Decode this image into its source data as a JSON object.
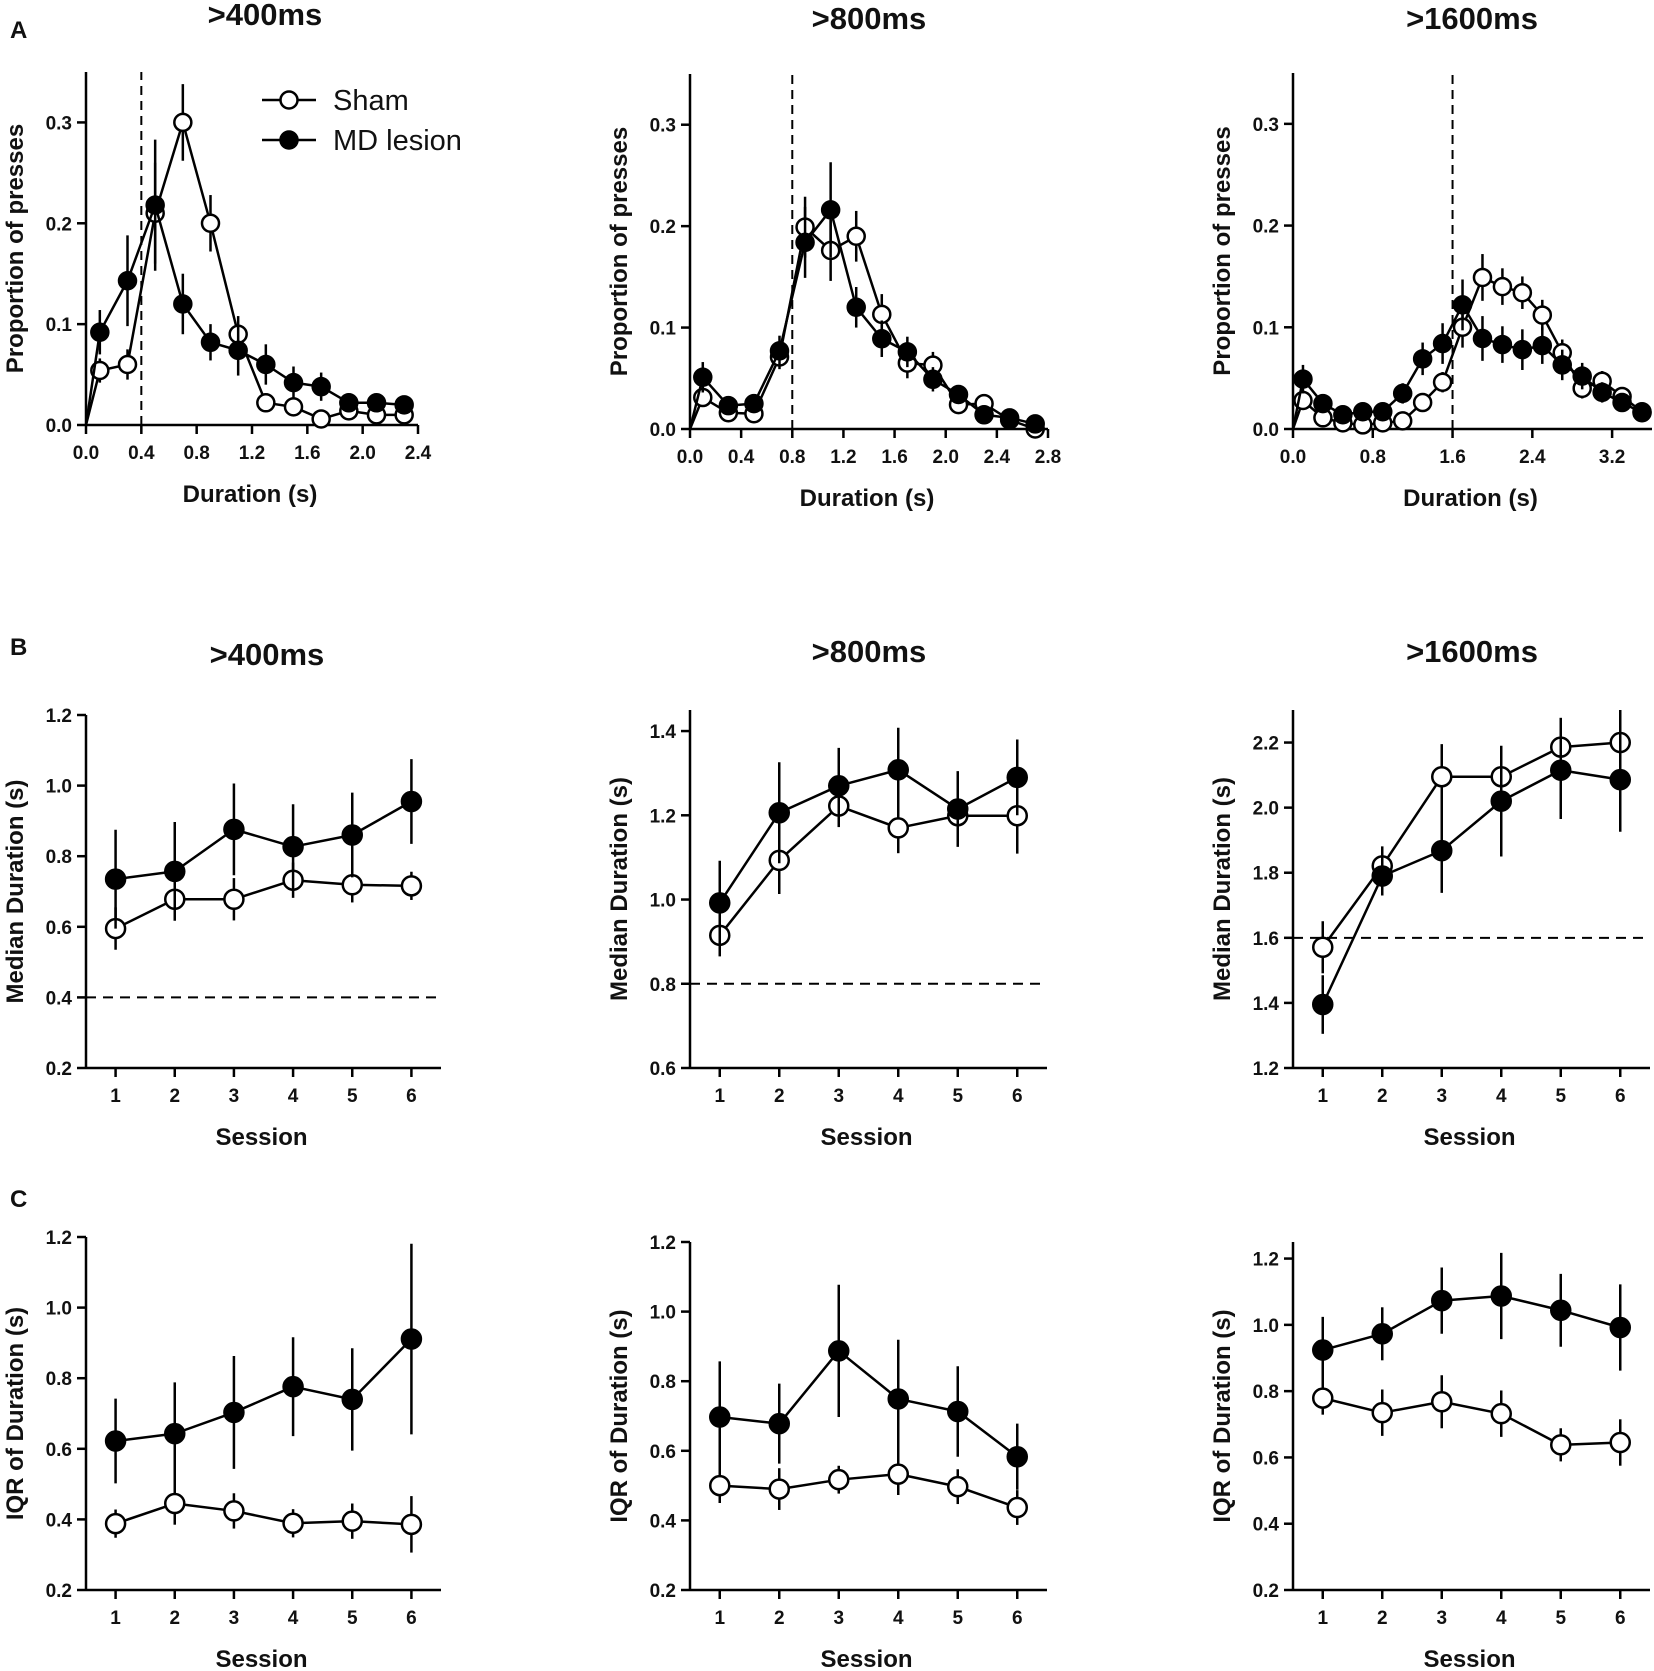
{
  "chart_data": [
    {
      "id": "A1",
      "row": "A",
      "type": "line",
      "title": ">400ms",
      "xlabel": "Duration (s)",
      "ylabel": "Proportion of presses",
      "xlim": [
        0,
        2.4
      ],
      "ylim": [
        0,
        0.35
      ],
      "xticks": [
        0.0,
        0.4,
        0.8,
        1.2,
        1.6,
        2.0,
        2.4
      ],
      "xtick_labels": [
        "0.0",
        "0.4",
        "0.8",
        "1.2",
        "1.6",
        "2.0",
        "2.4"
      ],
      "yticks": [
        0.0,
        0.1,
        0.2,
        0.3
      ],
      "ytick_labels": [
        "0.0",
        "0.1",
        "0.2",
        "0.3"
      ],
      "vline": 0.4,
      "hline": null,
      "origin_segment": true,
      "legend": [
        "Sham",
        "MD lesion"
      ],
      "series": [
        {
          "name": "Sham",
          "marker": "open",
          "x": [
            0.1,
            0.3,
            0.5,
            0.7,
            0.9,
            1.1,
            1.3,
            1.5,
            1.7,
            1.9,
            2.1,
            2.3
          ],
          "y": [
            0.054,
            0.06,
            0.21,
            0.3,
            0.2,
            0.09,
            0.022,
            0.018,
            0.006,
            0.014,
            0.01,
            0.01
          ],
          "err": [
            0.012,
            0.015,
            0.05,
            0.038,
            0.028,
            0.018,
            0.008,
            0.005,
            0.004,
            0.006,
            0.005,
            0.005
          ]
        },
        {
          "name": "MD lesion",
          "marker": "filled",
          "x": [
            0.1,
            0.3,
            0.5,
            0.7,
            0.9,
            1.1,
            1.3,
            1.5,
            1.7,
            1.9,
            2.1,
            2.3
          ],
          "y": [
            0.092,
            0.143,
            0.218,
            0.12,
            0.082,
            0.074,
            0.06,
            0.042,
            0.038,
            0.022,
            0.022,
            0.02
          ],
          "err": [
            0.022,
            0.045,
            0.065,
            0.03,
            0.018,
            0.025,
            0.02,
            0.016,
            0.014,
            0.008,
            0.008,
            0.007
          ]
        }
      ]
    },
    {
      "id": "A2",
      "row": "A",
      "type": "line",
      "title": ">800ms",
      "xlabel": "Duration (s)",
      "ylabel": "Proportion of presses",
      "xlim": [
        0,
        2.8
      ],
      "ylim": [
        0,
        0.35
      ],
      "xticks": [
        0.0,
        0.4,
        0.8,
        1.2,
        1.6,
        2.0,
        2.4,
        2.8
      ],
      "xtick_labels": [
        "0.0",
        "0.4",
        "0.8",
        "1.2",
        "1.6",
        "2.0",
        "2.4",
        "2.8"
      ],
      "yticks": [
        0.0,
        0.1,
        0.2,
        0.3
      ],
      "ytick_labels": [
        "0.0",
        "0.1",
        "0.2",
        "0.3"
      ],
      "vline": 0.8,
      "hline": null,
      "origin_segment": true,
      "series": [
        {
          "name": "Sham",
          "marker": "open",
          "x": [
            0.1,
            0.3,
            0.5,
            0.7,
            0.9,
            1.1,
            1.3,
            1.5,
            1.7,
            1.9,
            2.1,
            2.3,
            2.5,
            2.7
          ],
          "y": [
            0.031,
            0.016,
            0.015,
            0.071,
            0.199,
            0.176,
            0.19,
            0.113,
            0.065,
            0.063,
            0.024,
            0.025,
            0.009,
            0.0
          ],
          "err": [
            0.008,
            0.006,
            0.006,
            0.012,
            0.03,
            0.03,
            0.025,
            0.02,
            0.015,
            0.013,
            0.008,
            0.007,
            0.005,
            0.004
          ]
        },
        {
          "name": "MD lesion",
          "marker": "filled",
          "x": [
            0.1,
            0.3,
            0.5,
            0.7,
            0.9,
            1.1,
            1.3,
            1.5,
            1.7,
            1.9,
            2.1,
            2.3,
            2.5,
            2.7
          ],
          "y": [
            0.051,
            0.023,
            0.025,
            0.077,
            0.184,
            0.216,
            0.12,
            0.089,
            0.076,
            0.049,
            0.034,
            0.014,
            0.011,
            0.005
          ],
          "err": [
            0.015,
            0.007,
            0.007,
            0.015,
            0.035,
            0.047,
            0.02,
            0.018,
            0.015,
            0.012,
            0.008,
            0.005,
            0.004,
            0.003
          ]
        }
      ]
    },
    {
      "id": "A3",
      "row": "A",
      "type": "line",
      "title": ">1600ms",
      "xlabel": "Duration (s)",
      "ylabel": "Proportion of presses",
      "xlim": [
        0,
        3.6
      ],
      "ylim": [
        0,
        0.35
      ],
      "xticks": [
        0.0,
        0.8,
        1.6,
        2.4,
        3.2
      ],
      "xtick_labels": [
        "0.0",
        "0.8",
        "1.6",
        "2.4",
        "3.2"
      ],
      "yticks": [
        0.0,
        0.1,
        0.2,
        0.3
      ],
      "ytick_labels": [
        "0.0",
        "0.1",
        "0.2",
        "0.3"
      ],
      "vline": 1.6,
      "hline": null,
      "origin_segment": true,
      "series": [
        {
          "name": "Sham",
          "marker": "open",
          "x": [
            0.1,
            0.3,
            0.5,
            0.7,
            0.9,
            1.1,
            1.3,
            1.5,
            1.7,
            1.9,
            2.1,
            2.3,
            2.5,
            2.7,
            2.9,
            3.1,
            3.3,
            3.5
          ],
          "y": [
            0.028,
            0.011,
            0.006,
            0.004,
            0.006,
            0.008,
            0.026,
            0.046,
            0.1,
            0.149,
            0.14,
            0.134,
            0.112,
            0.075,
            0.04,
            0.047,
            0.032,
            0.017
          ],
          "err": [
            0.008,
            0.004,
            0.003,
            0.002,
            0.003,
            0.004,
            0.007,
            0.01,
            0.02,
            0.023,
            0.018,
            0.016,
            0.015,
            0.013,
            0.01,
            0.01,
            0.009,
            0.006
          ]
        },
        {
          "name": "MD lesion",
          "marker": "filled",
          "x": [
            0.1,
            0.3,
            0.5,
            0.7,
            0.9,
            1.1,
            1.3,
            1.5,
            1.7,
            1.9,
            2.1,
            2.3,
            2.5,
            2.7,
            2.9,
            3.1,
            3.3,
            3.5
          ],
          "y": [
            0.049,
            0.025,
            0.014,
            0.017,
            0.017,
            0.035,
            0.069,
            0.084,
            0.122,
            0.089,
            0.083,
            0.078,
            0.082,
            0.063,
            0.052,
            0.036,
            0.026,
            0.016
          ],
          "err": [
            0.014,
            0.008,
            0.005,
            0.006,
            0.006,
            0.01,
            0.016,
            0.02,
            0.025,
            0.022,
            0.018,
            0.02,
            0.018,
            0.015,
            0.013,
            0.01,
            0.008,
            0.006
          ]
        }
      ]
    },
    {
      "id": "B1",
      "row": "B",
      "type": "line",
      "title": ">400ms",
      "xlabel": "Session",
      "ylabel": "Median Duration (s)",
      "xlim": [
        0.5,
        6.5
      ],
      "ylim": [
        0.2,
        1.2
      ],
      "xticks": [
        1,
        2,
        3,
        4,
        5,
        6
      ],
      "xtick_labels": [
        "1",
        "2",
        "3",
        "4",
        "5",
        "6"
      ],
      "yticks": [
        0.2,
        0.4,
        0.6,
        0.8,
        1.0,
        1.2
      ],
      "ytick_labels": [
        "0.2",
        "0.4",
        "0.6",
        "0.8",
        "1.0",
        "1.2"
      ],
      "vline": null,
      "hline": 0.4,
      "series": [
        {
          "name": "Sham",
          "marker": "open",
          "x": [
            1,
            2,
            3,
            4,
            5,
            6
          ],
          "y": [
            0.595,
            0.678,
            0.678,
            0.732,
            0.719,
            0.716
          ],
          "err": [
            0.06,
            0.06,
            0.06,
            0.05,
            0.05,
            0.04
          ]
        },
        {
          "name": "MD lesion",
          "marker": "filled",
          "x": [
            1,
            2,
            3,
            4,
            5,
            6
          ],
          "y": [
            0.735,
            0.757,
            0.876,
            0.827,
            0.86,
            0.955
          ],
          "err": [
            0.14,
            0.14,
            0.13,
            0.12,
            0.12,
            0.12
          ]
        }
      ]
    },
    {
      "id": "B2",
      "row": "B",
      "type": "line",
      "title": ">800ms",
      "xlabel": "Session",
      "ylabel": "Median Duration (s)",
      "xlim": [
        0.5,
        6.5
      ],
      "ylim": [
        0.6,
        1.45
      ],
      "xticks": [
        1,
        2,
        3,
        4,
        5,
        6
      ],
      "xtick_labels": [
        "1",
        "2",
        "3",
        "4",
        "5",
        "6"
      ],
      "yticks": [
        0.6,
        0.8,
        1.0,
        1.2,
        1.4
      ],
      "ytick_labels": [
        "0.6",
        "0.8",
        "1.0",
        "1.2",
        "1.4"
      ],
      "vline": null,
      "hline": 0.8,
      "series": [
        {
          "name": "Sham",
          "marker": "open",
          "x": [
            1,
            2,
            3,
            4,
            5,
            6
          ],
          "y": [
            0.915,
            1.093,
            1.222,
            1.17,
            1.199,
            1.199
          ],
          "err": [
            0.05,
            0.08,
            0.05,
            0.06,
            0.07,
            0.09
          ]
        },
        {
          "name": "MD lesion",
          "marker": "filled",
          "x": [
            1,
            2,
            3,
            4,
            5,
            6
          ],
          "y": [
            0.992,
            1.206,
            1.27,
            1.308,
            1.215,
            1.29
          ],
          "err": [
            0.1,
            0.12,
            0.09,
            0.1,
            0.09,
            0.09
          ]
        }
      ]
    },
    {
      "id": "B3",
      "row": "B",
      "type": "line",
      "title": ">1600ms",
      "xlabel": "Session",
      "ylabel": "Median Duration (s)",
      "xlim": [
        0.5,
        6.5
      ],
      "ylim": [
        1.2,
        2.3
      ],
      "xticks": [
        1,
        2,
        3,
        4,
        5,
        6
      ],
      "xtick_labels": [
        "1",
        "2",
        "3",
        "4",
        "5",
        "6"
      ],
      "yticks": [
        1.2,
        1.4,
        1.6,
        1.8,
        2.0,
        2.2
      ],
      "ytick_labels": [
        "1.2",
        "1.4",
        "1.6",
        "1.8",
        "2.0",
        "2.2"
      ],
      "vline": null,
      "hline": 1.6,
      "series": [
        {
          "name": "Sham",
          "marker": "open",
          "x": [
            1,
            2,
            3,
            4,
            5,
            6
          ],
          "y": [
            1.571,
            1.821,
            2.095,
            2.095,
            2.186,
            2.2
          ],
          "err": [
            0.08,
            0.06,
            0.1,
            0.09,
            0.09,
            0.1
          ]
        },
        {
          "name": "MD lesion",
          "marker": "filled",
          "x": [
            1,
            2,
            3,
            4,
            5,
            6
          ],
          "y": [
            1.395,
            1.79,
            1.868,
            2.02,
            2.115,
            2.086
          ],
          "err": [
            0.09,
            0.06,
            0.13,
            0.17,
            0.15,
            0.16
          ]
        }
      ]
    },
    {
      "id": "C1",
      "row": "C",
      "type": "line",
      "title": "",
      "xlabel": "Session",
      "ylabel": "IQR of Duration (s)",
      "xlim": [
        0.5,
        6.5
      ],
      "ylim": [
        0.2,
        1.2
      ],
      "xticks": [
        1,
        2,
        3,
        4,
        5,
        6
      ],
      "xtick_labels": [
        "1",
        "2",
        "3",
        "4",
        "5",
        "6"
      ],
      "yticks": [
        0.2,
        0.4,
        0.6,
        0.8,
        1.0,
        1.2
      ],
      "ytick_labels": [
        "0.2",
        "0.4",
        "0.6",
        "0.8",
        "1.0",
        "1.2"
      ],
      "vline": null,
      "hline": null,
      "series": [
        {
          "name": "Sham",
          "marker": "open",
          "x": [
            1,
            2,
            3,
            4,
            5,
            6
          ],
          "y": [
            0.388,
            0.445,
            0.424,
            0.389,
            0.395,
            0.386
          ],
          "err": [
            0.04,
            0.06,
            0.05,
            0.04,
            0.05,
            0.08
          ]
        },
        {
          "name": "MD lesion",
          "marker": "filled",
          "x": [
            1,
            2,
            3,
            4,
            5,
            6
          ],
          "y": [
            0.622,
            0.643,
            0.703,
            0.776,
            0.74,
            0.911
          ],
          "err": [
            0.12,
            0.145,
            0.16,
            0.14,
            0.145,
            0.27
          ]
        }
      ]
    },
    {
      "id": "C2",
      "row": "C",
      "type": "line",
      "title": "",
      "xlabel": "Session",
      "ylabel": "IQR of Duration (s)",
      "xlim": [
        0.5,
        6.5
      ],
      "ylim": [
        0.2,
        1.2
      ],
      "xticks": [
        1,
        2,
        3,
        4,
        5,
        6
      ],
      "xtick_labels": [
        "1",
        "2",
        "3",
        "4",
        "5",
        "6"
      ],
      "yticks": [
        0.2,
        0.4,
        0.6,
        0.8,
        1.0,
        1.2
      ],
      "ytick_labels": [
        "0.2",
        "0.4",
        "0.6",
        "0.8",
        "1.0",
        "1.2"
      ],
      "vline": null,
      "hline": null,
      "series": [
        {
          "name": "Sham",
          "marker": "open",
          "x": [
            1,
            2,
            3,
            4,
            5,
            6
          ],
          "y": [
            0.5,
            0.49,
            0.517,
            0.533,
            0.497,
            0.437
          ],
          "err": [
            0.05,
            0.06,
            0.04,
            0.06,
            0.05,
            0.05
          ]
        },
        {
          "name": "MD lesion",
          "marker": "filled",
          "x": [
            1,
            2,
            3,
            4,
            5,
            6
          ],
          "y": [
            0.697,
            0.678,
            0.887,
            0.749,
            0.713,
            0.583
          ],
          "err": [
            0.16,
            0.115,
            0.19,
            0.17,
            0.13,
            0.095
          ]
        }
      ]
    },
    {
      "id": "C3",
      "row": "C",
      "type": "line",
      "title": "",
      "xlabel": "Session",
      "ylabel": "IQR of Duration (s)",
      "xlim": [
        0.5,
        6.5
      ],
      "ylim": [
        0.2,
        1.25
      ],
      "xticks": [
        1,
        2,
        3,
        4,
        5,
        6
      ],
      "xtick_labels": [
        "1",
        "2",
        "3",
        "4",
        "5",
        "6"
      ],
      "yticks": [
        0.2,
        0.4,
        0.6,
        0.8,
        1.0,
        1.2
      ],
      "ytick_labels": [
        "0.2",
        "0.4",
        "0.6",
        "0.8",
        "1.0",
        "1.2"
      ],
      "vline": null,
      "hline": null,
      "series": [
        {
          "name": "Sham",
          "marker": "open",
          "x": [
            1,
            2,
            3,
            4,
            5,
            6
          ],
          "y": [
            0.779,
            0.735,
            0.768,
            0.732,
            0.638,
            0.645
          ],
          "err": [
            0.05,
            0.07,
            0.08,
            0.07,
            0.05,
            0.07
          ]
        },
        {
          "name": "MD lesion",
          "marker": "filled",
          "x": [
            1,
            2,
            3,
            4,
            5,
            6
          ],
          "y": [
            0.924,
            0.973,
            1.073,
            1.087,
            1.044,
            0.992
          ],
          "err": [
            0.1,
            0.08,
            0.1,
            0.13,
            0.11,
            0.13
          ]
        }
      ]
    }
  ],
  "panel_labels": {
    "A": "A",
    "B": "B",
    "C": "C"
  },
  "legend": {
    "sham": "Sham",
    "md": "MD lesion"
  }
}
